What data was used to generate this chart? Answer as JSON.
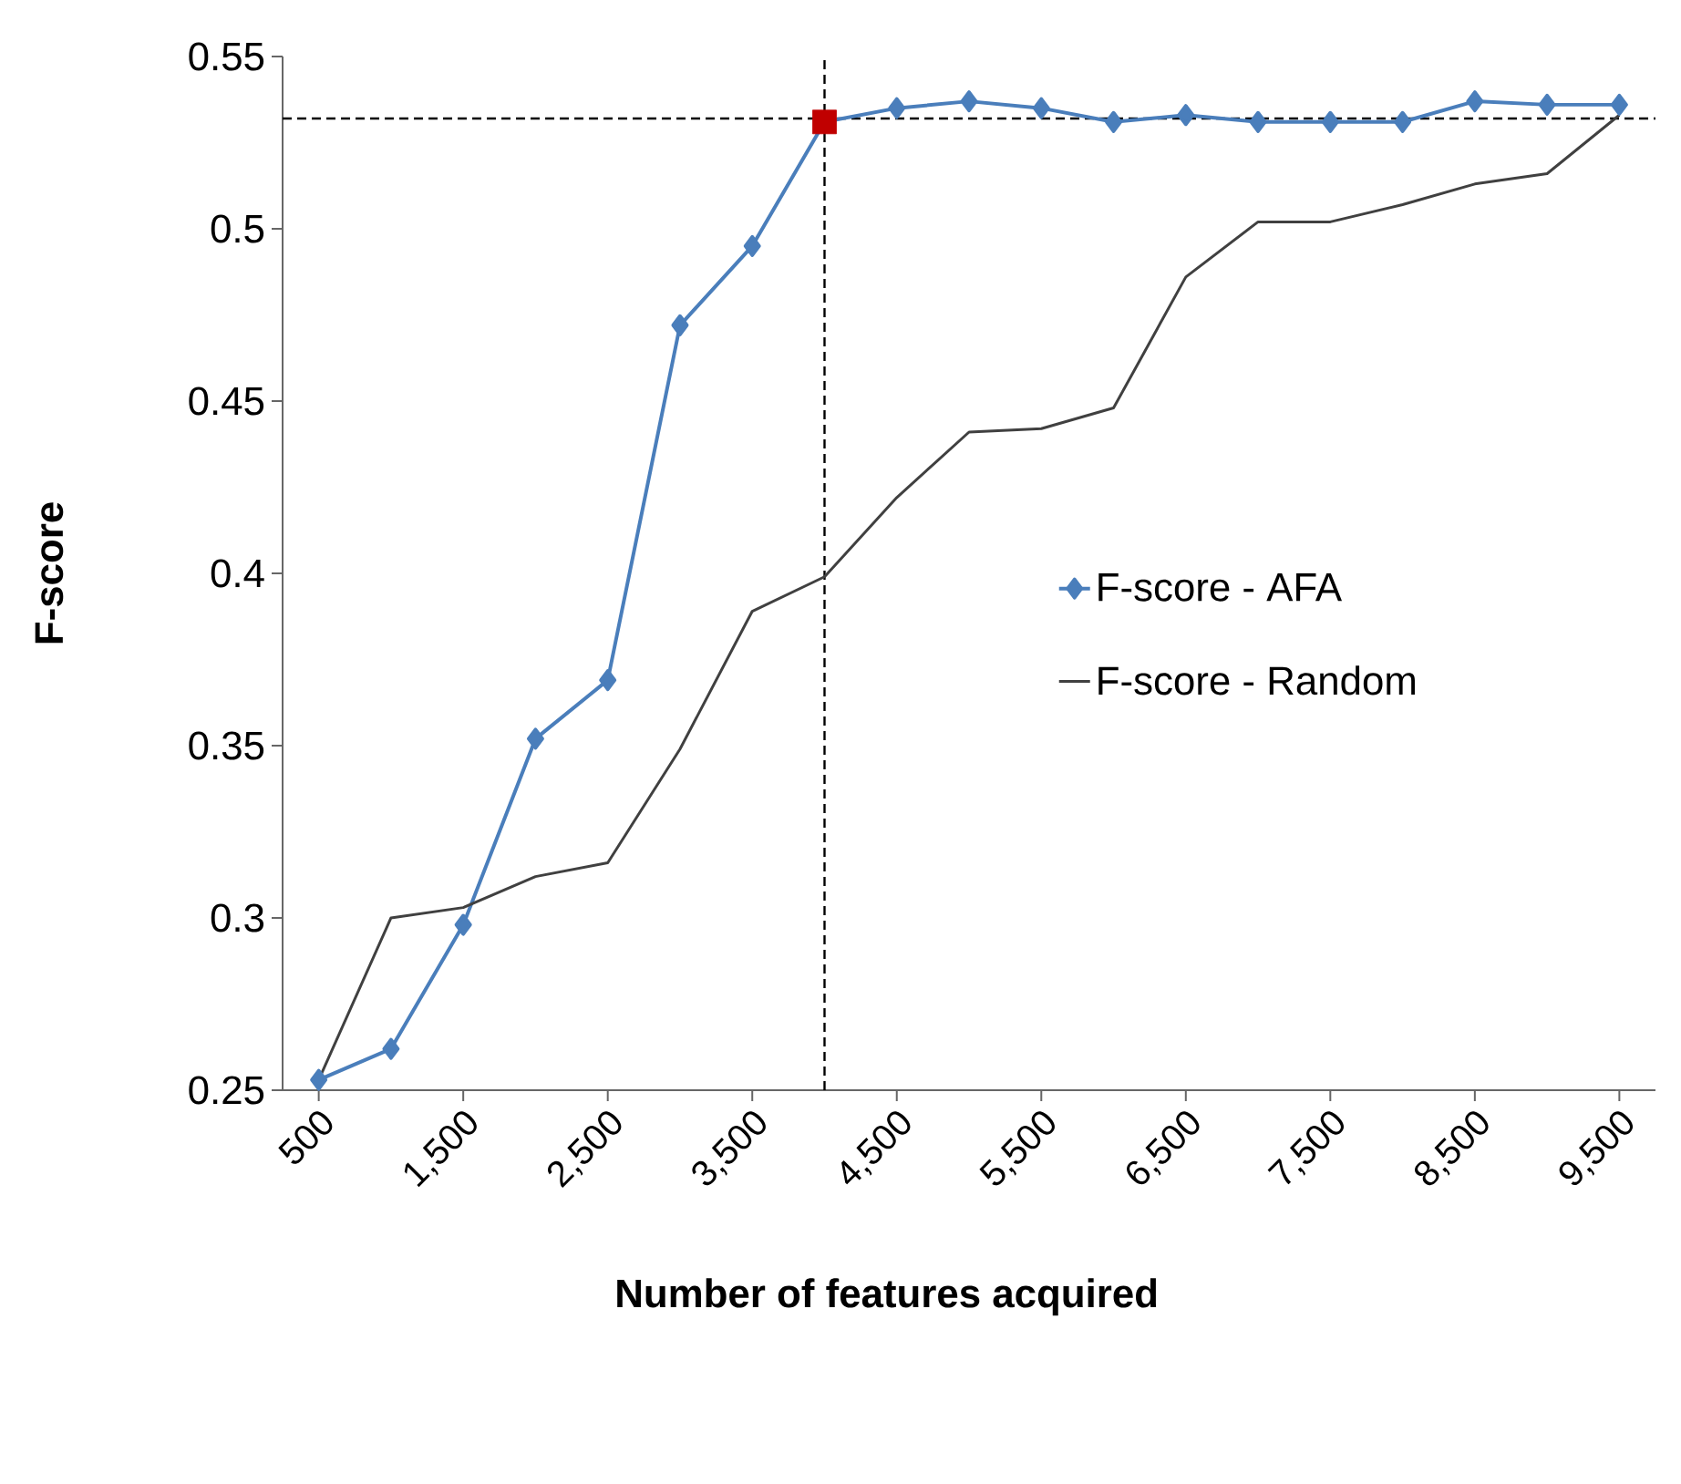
{
  "chart_data": {
    "type": "line",
    "xlabel": "Number of features acquired",
    "ylabel": "F-score",
    "x": [
      500,
      1000,
      1500,
      2000,
      2500,
      3000,
      3500,
      4000,
      4500,
      5000,
      5500,
      6000,
      6500,
      7000,
      7500,
      8000,
      8500,
      9000,
      9500
    ],
    "xlim": [
      250,
      9750
    ],
    "xticks": [
      {
        "value": 500,
        "label": "500"
      },
      {
        "value": 1500,
        "label": "1,500"
      },
      {
        "value": 2500,
        "label": "2,500"
      },
      {
        "value": 3500,
        "label": "3,500"
      },
      {
        "value": 4500,
        "label": "4,500"
      },
      {
        "value": 5500,
        "label": "5,500"
      },
      {
        "value": 6500,
        "label": "6,500"
      },
      {
        "value": 7500,
        "label": "7,500"
      },
      {
        "value": 8500,
        "label": "8,500"
      },
      {
        "value": 9500,
        "label": "9,500"
      }
    ],
    "ylim": [
      0.25,
      0.55
    ],
    "yticks": [
      {
        "value": 0.25,
        "label": "0.25"
      },
      {
        "value": 0.3,
        "label": "0.3"
      },
      {
        "value": 0.35,
        "label": "0.35"
      },
      {
        "value": 0.4,
        "label": "0.4"
      },
      {
        "value": 0.45,
        "label": "0.45"
      },
      {
        "value": 0.5,
        "label": "0.5"
      },
      {
        "value": 0.55,
        "label": "0.55"
      }
    ],
    "series": [
      {
        "name": "F-score - AFA",
        "color": "#4a7ebb",
        "marker": "diamond",
        "values": [
          0.253,
          0.262,
          0.298,
          0.352,
          0.369,
          0.472,
          0.495,
          0.531,
          0.535,
          0.537,
          0.535,
          0.531,
          0.533,
          0.531,
          0.531,
          0.531,
          0.537,
          0.536,
          0.536
        ]
      },
      {
        "name": "F-score - Random",
        "color": "#404040",
        "marker": "none",
        "values": [
          0.253,
          0.3,
          0.303,
          0.312,
          0.316,
          0.349,
          0.389,
          0.399,
          0.422,
          0.441,
          0.442,
          0.448,
          0.486,
          0.502,
          0.502,
          0.507,
          0.513,
          0.516,
          0.533
        ]
      },
      {
        "type": "scatter",
        "color": "#c00000",
        "marker": "square",
        "values": [
          null,
          null,
          null,
          null,
          null,
          null,
          null,
          0.531,
          null,
          null,
          null,
          null,
          null,
          null,
          null,
          null,
          null,
          null,
          null
        ]
      }
    ],
    "ref_lines": [
      {
        "axis": "y",
        "value": 0.532,
        "color": "#000000",
        "line_style": "dashed"
      },
      {
        "axis": "x",
        "value": 4000,
        "color": "#000000",
        "line_style": "dashed"
      }
    ],
    "legend": "right",
    "grid": false
  }
}
